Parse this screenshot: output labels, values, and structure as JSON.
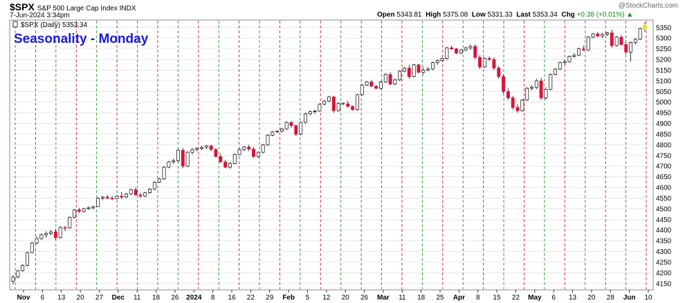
{
  "header": {
    "symbol": "$SPX",
    "description": "S&P 500 Large Cap Index INDX",
    "date": "7-Jun-2024 3:34pm",
    "watermark": "@StockCharts.com",
    "open_label": "Open",
    "open": "5343.81",
    "high_label": "High",
    "high": "5375.08",
    "low_label": "Low",
    "low": "5331.33",
    "last_label": "Last",
    "last": "5353.34",
    "chg_label": "Chg",
    "chg": "+0.38 (+0.01%)"
  },
  "legend": {
    "text": "$SPX (Daily) 5353.34"
  },
  "annotation": "Seasonality - Monday",
  "chart_data": {
    "type": "candlestick",
    "title": "Seasonality - Monday",
    "ylim": [
      4120,
      5385
    ],
    "yticks": [
      4150,
      4200,
      4250,
      4300,
      4350,
      4400,
      4450,
      4500,
      4550,
      4600,
      4650,
      4700,
      4750,
      4800,
      4850,
      4900,
      4950,
      5000,
      5050,
      5100,
      5150,
      5200,
      5250,
      5300,
      5350
    ],
    "xticks": [
      {
        "label": "Nov",
        "bold": true
      },
      {
        "label": "6"
      },
      {
        "label": "13"
      },
      {
        "label": "20"
      },
      {
        "label": "27"
      },
      {
        "label": "Dec",
        "bold": true
      },
      {
        "label": "11"
      },
      {
        "label": "18"
      },
      {
        "label": "26"
      },
      {
        "label": "2024",
        "bold": true
      },
      {
        "label": "8"
      },
      {
        "label": "16"
      },
      {
        "label": "22"
      },
      {
        "label": "29"
      },
      {
        "label": "Feb",
        "bold": true
      },
      {
        "label": "5"
      },
      {
        "label": "12"
      },
      {
        "label": "20"
      },
      {
        "label": "26"
      },
      {
        "label": "Mar",
        "bold": true
      },
      {
        "label": "11"
      },
      {
        "label": "18"
      },
      {
        "label": "25"
      },
      {
        "label": "Apr",
        "bold": true
      },
      {
        "label": "8"
      },
      {
        "label": "15"
      },
      {
        "label": "22"
      },
      {
        "label": "May",
        "bold": true
      },
      {
        "label": "6"
      },
      {
        "label": "13"
      },
      {
        "label": "20"
      },
      {
        "label": "28"
      },
      {
        "label": "Jun",
        "bold": true
      },
      {
        "label": "10"
      }
    ],
    "colors": {
      "up": "#ffffff",
      "down": "#d6143c",
      "outline": "#000000",
      "green_line": "#1f8f1f",
      "red_line": "#d11a1a",
      "grid": "#d8d8d8",
      "annotation": "#1a1adb"
    },
    "week_lines": [
      "green",
      "red",
      "green",
      "red",
      "green",
      "red",
      "green",
      "red",
      "green",
      "red",
      "green",
      "red",
      "green",
      "red",
      "green",
      "red",
      "green",
      "red",
      "green",
      "red",
      "green",
      "red",
      "green",
      "red",
      "green",
      "red",
      "green",
      "red",
      "green",
      "red",
      "green",
      "red"
    ],
    "candles": [
      [
        4160,
        4190,
        4145,
        4180
      ],
      [
        4180,
        4215,
        4175,
        4210
      ],
      [
        4210,
        4240,
        4205,
        4235
      ],
      [
        4235,
        4300,
        4230,
        4295
      ],
      [
        4295,
        4345,
        4290,
        4340
      ],
      [
        4340,
        4370,
        4335,
        4360
      ],
      [
        4360,
        4385,
        4355,
        4378
      ],
      [
        4378,
        4395,
        4365,
        4385
      ],
      [
        4385,
        4400,
        4375,
        4392
      ],
      [
        4392,
        4405,
        4355,
        4365
      ],
      [
        4365,
        4420,
        4360,
        4412
      ],
      [
        4412,
        4420,
        4395,
        4410
      ],
      [
        4410,
        4465,
        4405,
        4460
      ],
      [
        4460,
        4500,
        4455,
        4495
      ],
      [
        4495,
        4505,
        4480,
        4488
      ],
      [
        4488,
        4505,
        4482,
        4500
      ],
      [
        4500,
        4512,
        4495,
        4505
      ],
      [
        4505,
        4515,
        4498,
        4510
      ],
      [
        4510,
        4555,
        4508,
        4550
      ],
      [
        4550,
        4560,
        4540,
        4555
      ],
      [
        4555,
        4565,
        4545,
        4550
      ],
      [
        4550,
        4560,
        4540,
        4548
      ],
      [
        4548,
        4565,
        4545,
        4560
      ],
      [
        4560,
        4580,
        4545,
        4555
      ],
      [
        4555,
        4575,
        4550,
        4570
      ],
      [
        4570,
        4595,
        4565,
        4590
      ],
      [
        4590,
        4600,
        4560,
        4565
      ],
      [
        4565,
        4575,
        4550,
        4560
      ],
      [
        4560,
        4580,
        4555,
        4575
      ],
      [
        4575,
        4598,
        4570,
        4592
      ],
      [
        4592,
        4630,
        4588,
        4625
      ],
      [
        4625,
        4645,
        4620,
        4640
      ],
      [
        4640,
        4700,
        4635,
        4695
      ],
      [
        4695,
        4725,
        4690,
        4720
      ],
      [
        4720,
        4735,
        4710,
        4725
      ],
      [
        4725,
        4780,
        4720,
        4775
      ],
      [
        4775,
        4785,
        4690,
        4700
      ],
      [
        4700,
        4770,
        4695,
        4765
      ],
      [
        4765,
        4785,
        4755,
        4778
      ],
      [
        4778,
        4790,
        4770,
        4783
      ],
      [
        4783,
        4795,
        4775,
        4788
      ],
      [
        4788,
        4800,
        4780,
        4795
      ],
      [
        4795,
        4800,
        4770,
        4778
      ],
      [
        4778,
        4785,
        4740,
        4745
      ],
      [
        4745,
        4760,
        4715,
        4720
      ],
      [
        4720,
        4730,
        4690,
        4695
      ],
      [
        4695,
        4720,
        4688,
        4712
      ],
      [
        4712,
        4760,
        4708,
        4755
      ],
      [
        4755,
        4785,
        4750,
        4778
      ],
      [
        4778,
        4795,
        4770,
        4790
      ],
      [
        4790,
        4800,
        4770,
        4780
      ],
      [
        4780,
        4790,
        4740,
        4745
      ],
      [
        4745,
        4770,
        4740,
        4765
      ],
      [
        4765,
        4805,
        4760,
        4800
      ],
      [
        4800,
        4850,
        4795,
        4845
      ],
      [
        4845,
        4865,
        4840,
        4860
      ],
      [
        4860,
        4868,
        4855,
        4864
      ],
      [
        4864,
        4880,
        4858,
        4875
      ],
      [
        4875,
        4910,
        4870,
        4905
      ],
      [
        4905,
        4912,
        4880,
        4890
      ],
      [
        4890,
        4895,
        4840,
        4850
      ],
      [
        4850,
        4910,
        4845,
        4905
      ],
      [
        4905,
        4950,
        4900,
        4945
      ],
      [
        4945,
        4962,
        4938,
        4955
      ],
      [
        4955,
        4965,
        4945,
        4958
      ],
      [
        4958,
        4995,
        4955,
        4990
      ],
      [
        4990,
        5010,
        4985,
        5005
      ],
      [
        5005,
        5030,
        5000,
        5025
      ],
      [
        5025,
        5030,
        4950,
        4960
      ],
      [
        4960,
        5000,
        4955,
        4995
      ],
      [
        4995,
        5000,
        4985,
        4992
      ],
      [
        4992,
        5005,
        4975,
        4980
      ],
      [
        4980,
        4985,
        4960,
        4965
      ],
      [
        4965,
        5040,
        4960,
        5035
      ],
      [
        5035,
        5085,
        5030,
        5080
      ],
      [
        5080,
        5100,
        5075,
        5095
      ],
      [
        5095,
        5105,
        5070,
        5075
      ],
      [
        5075,
        5080,
        5060,
        5065
      ],
      [
        5065,
        5100,
        5060,
        5095
      ],
      [
        5095,
        5135,
        5090,
        5130
      ],
      [
        5130,
        5140,
        5080,
        5085
      ],
      [
        5085,
        5110,
        5080,
        5105
      ],
      [
        5105,
        5150,
        5100,
        5145
      ],
      [
        5145,
        5165,
        5140,
        5160
      ],
      [
        5160,
        5175,
        5110,
        5120
      ],
      [
        5120,
        5180,
        5115,
        5175
      ],
      [
        5175,
        5180,
        5135,
        5140
      ],
      [
        5140,
        5165,
        5130,
        5150
      ],
      [
        5150,
        5165,
        5145,
        5155
      ],
      [
        5155,
        5190,
        5150,
        5185
      ],
      [
        5185,
        5200,
        5175,
        5195
      ],
      [
        5195,
        5210,
        5190,
        5205
      ],
      [
        5205,
        5260,
        5200,
        5255
      ],
      [
        5255,
        5265,
        5245,
        5250
      ],
      [
        5250,
        5255,
        5225,
        5230
      ],
      [
        5230,
        5250,
        5225,
        5245
      ],
      [
        5245,
        5260,
        5240,
        5255
      ],
      [
        5255,
        5270,
        5245,
        5262
      ],
      [
        5262,
        5270,
        5200,
        5210
      ],
      [
        5210,
        5220,
        5155,
        5165
      ],
      [
        5165,
        5210,
        5160,
        5205
      ],
      [
        5205,
        5215,
        5195,
        5200
      ],
      [
        5200,
        5210,
        5150,
        5160
      ],
      [
        5160,
        5170,
        5110,
        5120
      ],
      [
        5120,
        5130,
        5040,
        5050
      ],
      [
        5050,
        5065,
        5010,
        5020
      ],
      [
        5020,
        5030,
        4965,
        4975
      ],
      [
        4975,
        4990,
        4950,
        4960
      ],
      [
        4960,
        5015,
        4955,
        5010
      ],
      [
        5010,
        5070,
        5005,
        5065
      ],
      [
        5065,
        5080,
        5055,
        5070
      ],
      [
        5070,
        5110,
        5060,
        5100
      ],
      [
        5100,
        5115,
        5010,
        5020
      ],
      [
        5020,
        5070,
        5012,
        5060
      ],
      [
        5060,
        5135,
        5055,
        5130
      ],
      [
        5130,
        5160,
        5125,
        5155
      ],
      [
        5155,
        5190,
        5150,
        5185
      ],
      [
        5185,
        5200,
        5175,
        5190
      ],
      [
        5190,
        5220,
        5185,
        5215
      ],
      [
        5215,
        5230,
        5208,
        5220
      ],
      [
        5220,
        5255,
        5215,
        5250
      ],
      [
        5250,
        5265,
        5240,
        5245
      ],
      [
        5245,
        5310,
        5240,
        5305
      ],
      [
        5305,
        5325,
        5300,
        5320
      ],
      [
        5320,
        5330,
        5305,
        5310
      ],
      [
        5310,
        5325,
        5300,
        5318
      ],
      [
        5318,
        5330,
        5310,
        5325
      ],
      [
        5325,
        5340,
        5255,
        5265
      ],
      [
        5265,
        5310,
        5260,
        5305
      ],
      [
        5305,
        5315,
        5265,
        5270
      ],
      [
        5270,
        5280,
        5225,
        5235
      ],
      [
        5235,
        5285,
        5190,
        5280
      ],
      [
        5280,
        5300,
        5270,
        5295
      ],
      [
        5295,
        5350,
        5290,
        5345
      ],
      [
        5345,
        5375,
        5330,
        5353
      ]
    ]
  }
}
